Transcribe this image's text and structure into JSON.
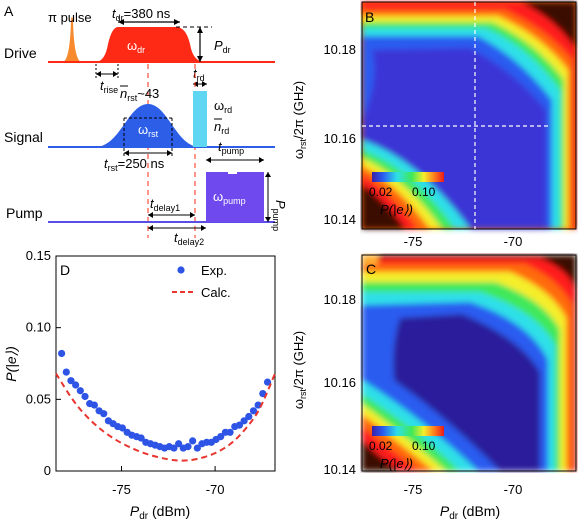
{
  "panel_a": {
    "label": "A",
    "pi_pulse": "π pulse",
    "rows": {
      "drive": "Drive",
      "signal": "Signal",
      "pump": "Pump"
    },
    "t_dr": "t",
    "t_dr_sub": "dr",
    "t_dr_val": "=380 ns",
    "omega_dr": "ω",
    "omega_dr_sub": "dr",
    "p_dr": "P",
    "p_dr_sub": "dr",
    "t_rise": "t",
    "t_rise_sub": "rise",
    "t_rd": "t",
    "t_rd_sub": "rd",
    "n_rst": "n",
    "n_rst_sub": "rst",
    "n_rst_val": "~43",
    "omega_rd": "ω",
    "omega_rd_sub": "rd",
    "n_rd": "n",
    "n_rd_sub": "rd",
    "omega_rst": "ω",
    "omega_rst_sub": "rst",
    "t_rst": "t",
    "t_rst_sub": "rst",
    "t_rst_val": "=250 ns",
    "t_pump": "t",
    "t_pump_sub": "pump",
    "omega_pump": "ω",
    "omega_pump_sub": "pump",
    "p_pump": "P",
    "p_pump_sub": "pump",
    "t_delay1": "t",
    "t_delay1_sub": "delay1",
    "t_delay2": "t",
    "t_delay2_sub": "delay2",
    "colors": {
      "drive": "#ff2a16",
      "pi": "#f78a2c",
      "signal": "#2c5ee8",
      "rd": "#5fd6f2",
      "pump": "#6f48ee",
      "pumpline": "#5a4de6"
    }
  },
  "panel_b": {
    "label": "B",
    "ylabel": "ω",
    "ylabel_sub": "rst",
    "ylabel_rest": "/2π (GHz)",
    "yticks": [
      "10.18",
      "10.16",
      "10.14"
    ],
    "xticks": [
      "-75",
      "-70"
    ],
    "cb_ticks": [
      "0.02",
      "0.10"
    ],
    "cb_label": "P(|e⟩)"
  },
  "panel_c": {
    "label": "C",
    "ylabel": "ω",
    "ylabel_sub": "rst",
    "ylabel_rest": "/2π (GHz)",
    "yticks": [
      "10.18",
      "10.16",
      "10.14"
    ],
    "xticks": [
      "-75",
      "-70"
    ],
    "xlabel": "P",
    "xlabel_sub": "dr",
    "xlabel_rest": " (dBm)",
    "cb_ticks": [
      "0.02",
      "0.10"
    ],
    "cb_label": "P(|e⟩)"
  },
  "chart_data": {
    "type": "scatter",
    "panel_label": "D",
    "xlabel": "P",
    "xlabel_sub": "dr",
    "xlabel_rest": " (dBm)",
    "ylabel": "P(|e⟩)",
    "xlim": [
      -78.5,
      -66.8
    ],
    "ylim": [
      0,
      0.15
    ],
    "xticks": [
      "-75",
      "-70"
    ],
    "xtick_values": [
      -75,
      -70
    ],
    "yticks": [
      "0",
      "0.05",
      "0.10",
      "0.15"
    ],
    "ytick_values": [
      0,
      0.05,
      0.1,
      0.15
    ],
    "legend": [
      "Exp.",
      "Calc."
    ],
    "legend_position": "top-right",
    "series": [
      {
        "name": "Exp.",
        "style": "markers",
        "color": "#2e54e6",
        "x": [
          -78.2,
          -77.95,
          -77.7,
          -77.45,
          -77.2,
          -76.95,
          -76.7,
          -76.45,
          -76.2,
          -75.95,
          -75.7,
          -75.45,
          -75.2,
          -74.95,
          -74.7,
          -74.45,
          -74.2,
          -73.95,
          -73.7,
          -73.45,
          -73.2,
          -72.95,
          -72.7,
          -72.45,
          -72.2,
          -71.95,
          -71.7,
          -71.45,
          -71.2,
          -70.95,
          -70.7,
          -70.45,
          -70.2,
          -69.95,
          -69.7,
          -69.45,
          -69.2,
          -68.95,
          -68.7,
          -68.45,
          -68.2,
          -67.95,
          -67.7,
          -67.45,
          -67.2
        ],
        "y": [
          0.082,
          0.069,
          0.063,
          0.06,
          0.056,
          0.052,
          0.047,
          0.046,
          0.042,
          0.04,
          0.035,
          0.033,
          0.031,
          0.03,
          0.027,
          0.025,
          0.024,
          0.023,
          0.02,
          0.019,
          0.018,
          0.017,
          0.016,
          0.017,
          0.016,
          0.019,
          0.016,
          0.017,
          0.021,
          0.016,
          0.019,
          0.02,
          0.02,
          0.022,
          0.024,
          0.027,
          0.027,
          0.031,
          0.032,
          0.035,
          0.038,
          0.042,
          0.046,
          0.054,
          0.062
        ]
      },
      {
        "name": "Calc.",
        "style": "dashed",
        "color": "#e8352f",
        "x": [
          -78.5,
          -77.5,
          -76.5,
          -75.5,
          -74.5,
          -73.5,
          -72.5,
          -71.75,
          -71.0,
          -70.0,
          -69.0,
          -68.0,
          -67.5,
          -66.8
        ],
        "y": [
          0.068,
          0.047,
          0.033,
          0.023,
          0.016,
          0.011,
          0.008,
          0.007,
          0.008,
          0.012,
          0.02,
          0.035,
          0.046,
          0.068
        ]
      }
    ]
  }
}
